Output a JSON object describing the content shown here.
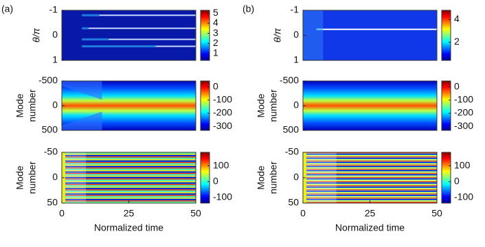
{
  "chart_data": [
    {
      "type": "heatmap",
      "panel_label": "(a)",
      "ylabel": "θ/π",
      "ylim": [
        -1,
        1
      ],
      "yticks": [
        -1,
        0,
        1
      ],
      "y_inverted": true,
      "colorbar": {
        "clim": [
          0.3,
          5.3
        ],
        "cticks": [
          1,
          2,
          3,
          4,
          5
        ]
      }
    },
    {
      "type": "heatmap",
      "ylabel_lines": [
        "Mode",
        "number"
      ],
      "ylim": [
        -500,
        500
      ],
      "yticks": [
        -500,
        0,
        500
      ],
      "y_inverted": true,
      "colorbar": {
        "clim": [
          -330,
          45
        ],
        "cticks": [
          0,
          -100,
          -200,
          -300
        ]
      }
    },
    {
      "type": "heatmap",
      "ylabel_lines": [
        "Mode",
        "number"
      ],
      "ylim": [
        -50,
        50
      ],
      "yticks": [
        -50,
        0,
        50
      ],
      "y_inverted": true,
      "xlabel": "Normalized time",
      "xlim": [
        0,
        50
      ],
      "xticks": [
        0,
        25,
        50
      ],
      "colorbar": {
        "clim": [
          -135,
          185
        ],
        "cticks": [
          100,
          0,
          -100
        ]
      }
    },
    {
      "type": "heatmap",
      "panel_label": "(b)",
      "ylabel": "θ/π",
      "ylim": [
        -1,
        1
      ],
      "yticks": [
        -1,
        0,
        1
      ],
      "y_inverted": true,
      "colorbar": {
        "clim": [
          0.4,
          4.8
        ],
        "cticks": [
          2,
          4
        ]
      }
    },
    {
      "type": "heatmap",
      "ylabel_lines": [
        "Mode",
        "number"
      ],
      "ylim": [
        -500,
        500
      ],
      "yticks": [
        -500,
        0,
        500
      ],
      "y_inverted": true,
      "colorbar": {
        "clim": [
          -330,
          45
        ],
        "cticks": [
          0,
          -100,
          -200,
          -300
        ]
      }
    },
    {
      "type": "heatmap",
      "ylabel_lines": [
        "Mode",
        "number"
      ],
      "ylim": [
        -50,
        50
      ],
      "yticks": [
        -50,
        0,
        50
      ],
      "y_inverted": true,
      "xlabel": "Normalized time",
      "xlim": [
        0,
        50
      ],
      "xticks": [
        0,
        25,
        50
      ],
      "colorbar": {
        "clim": [
          -135,
          185
        ],
        "cticks": [
          100,
          0,
          -100
        ]
      }
    }
  ]
}
